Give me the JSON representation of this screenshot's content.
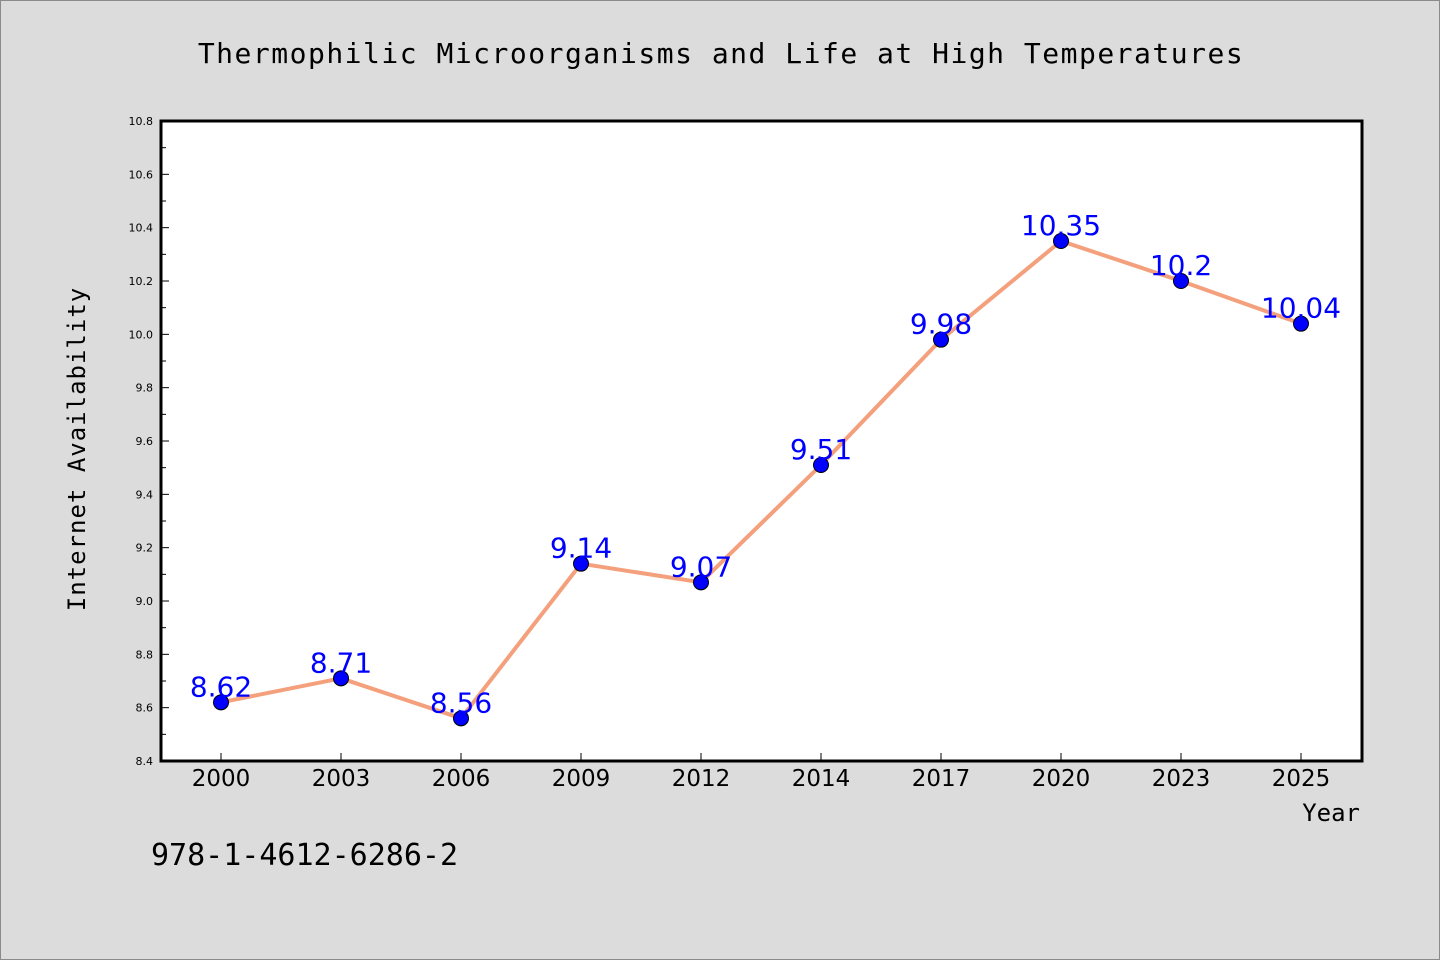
{
  "chart_data": {
    "type": "line",
    "title": "Thermophilic Microorganisms and Life at High Temperatures",
    "xlabel": "Year",
    "ylabel": "Internet Availability",
    "categories": [
      "2000",
      "2003",
      "2006",
      "2009",
      "2012",
      "2014",
      "2017",
      "2020",
      "2023",
      "2025"
    ],
    "series": [
      {
        "values": [
          8.62,
          8.71,
          8.56,
          9.14,
          9.07,
          9.51,
          9.98,
          10.35,
          10.2,
          10.04
        ],
        "data_labels": [
          "8.62",
          "8.71",
          "8.56",
          "9.14",
          "9.07",
          "9.51",
          "9.98",
          "10.35",
          "10.2",
          "10.04"
        ]
      }
    ],
    "ylim": [
      8.4,
      10.8
    ],
    "yticks": [
      8.4,
      8.6,
      8.8,
      9.0,
      9.2,
      9.4,
      9.6,
      9.8,
      10.0,
      10.2,
      10.4,
      10.6,
      10.8
    ],
    "ytick_labels": [
      "8.4",
      "8.6",
      "8.8",
      "9.0",
      "9.2",
      "9.4",
      "9.6",
      "9.8",
      "10.0",
      "10.2",
      "10.4",
      "10.6",
      "10.8"
    ],
    "grid": false,
    "legend": "none"
  },
  "footer_text": "978-1-4612-6286-2",
  "colors": {
    "line": "#f4a07c",
    "marker": "#0000ff",
    "label": "#0000ff",
    "figure_background": "#dcdcdc",
    "plot_background": "#ffffff"
  }
}
